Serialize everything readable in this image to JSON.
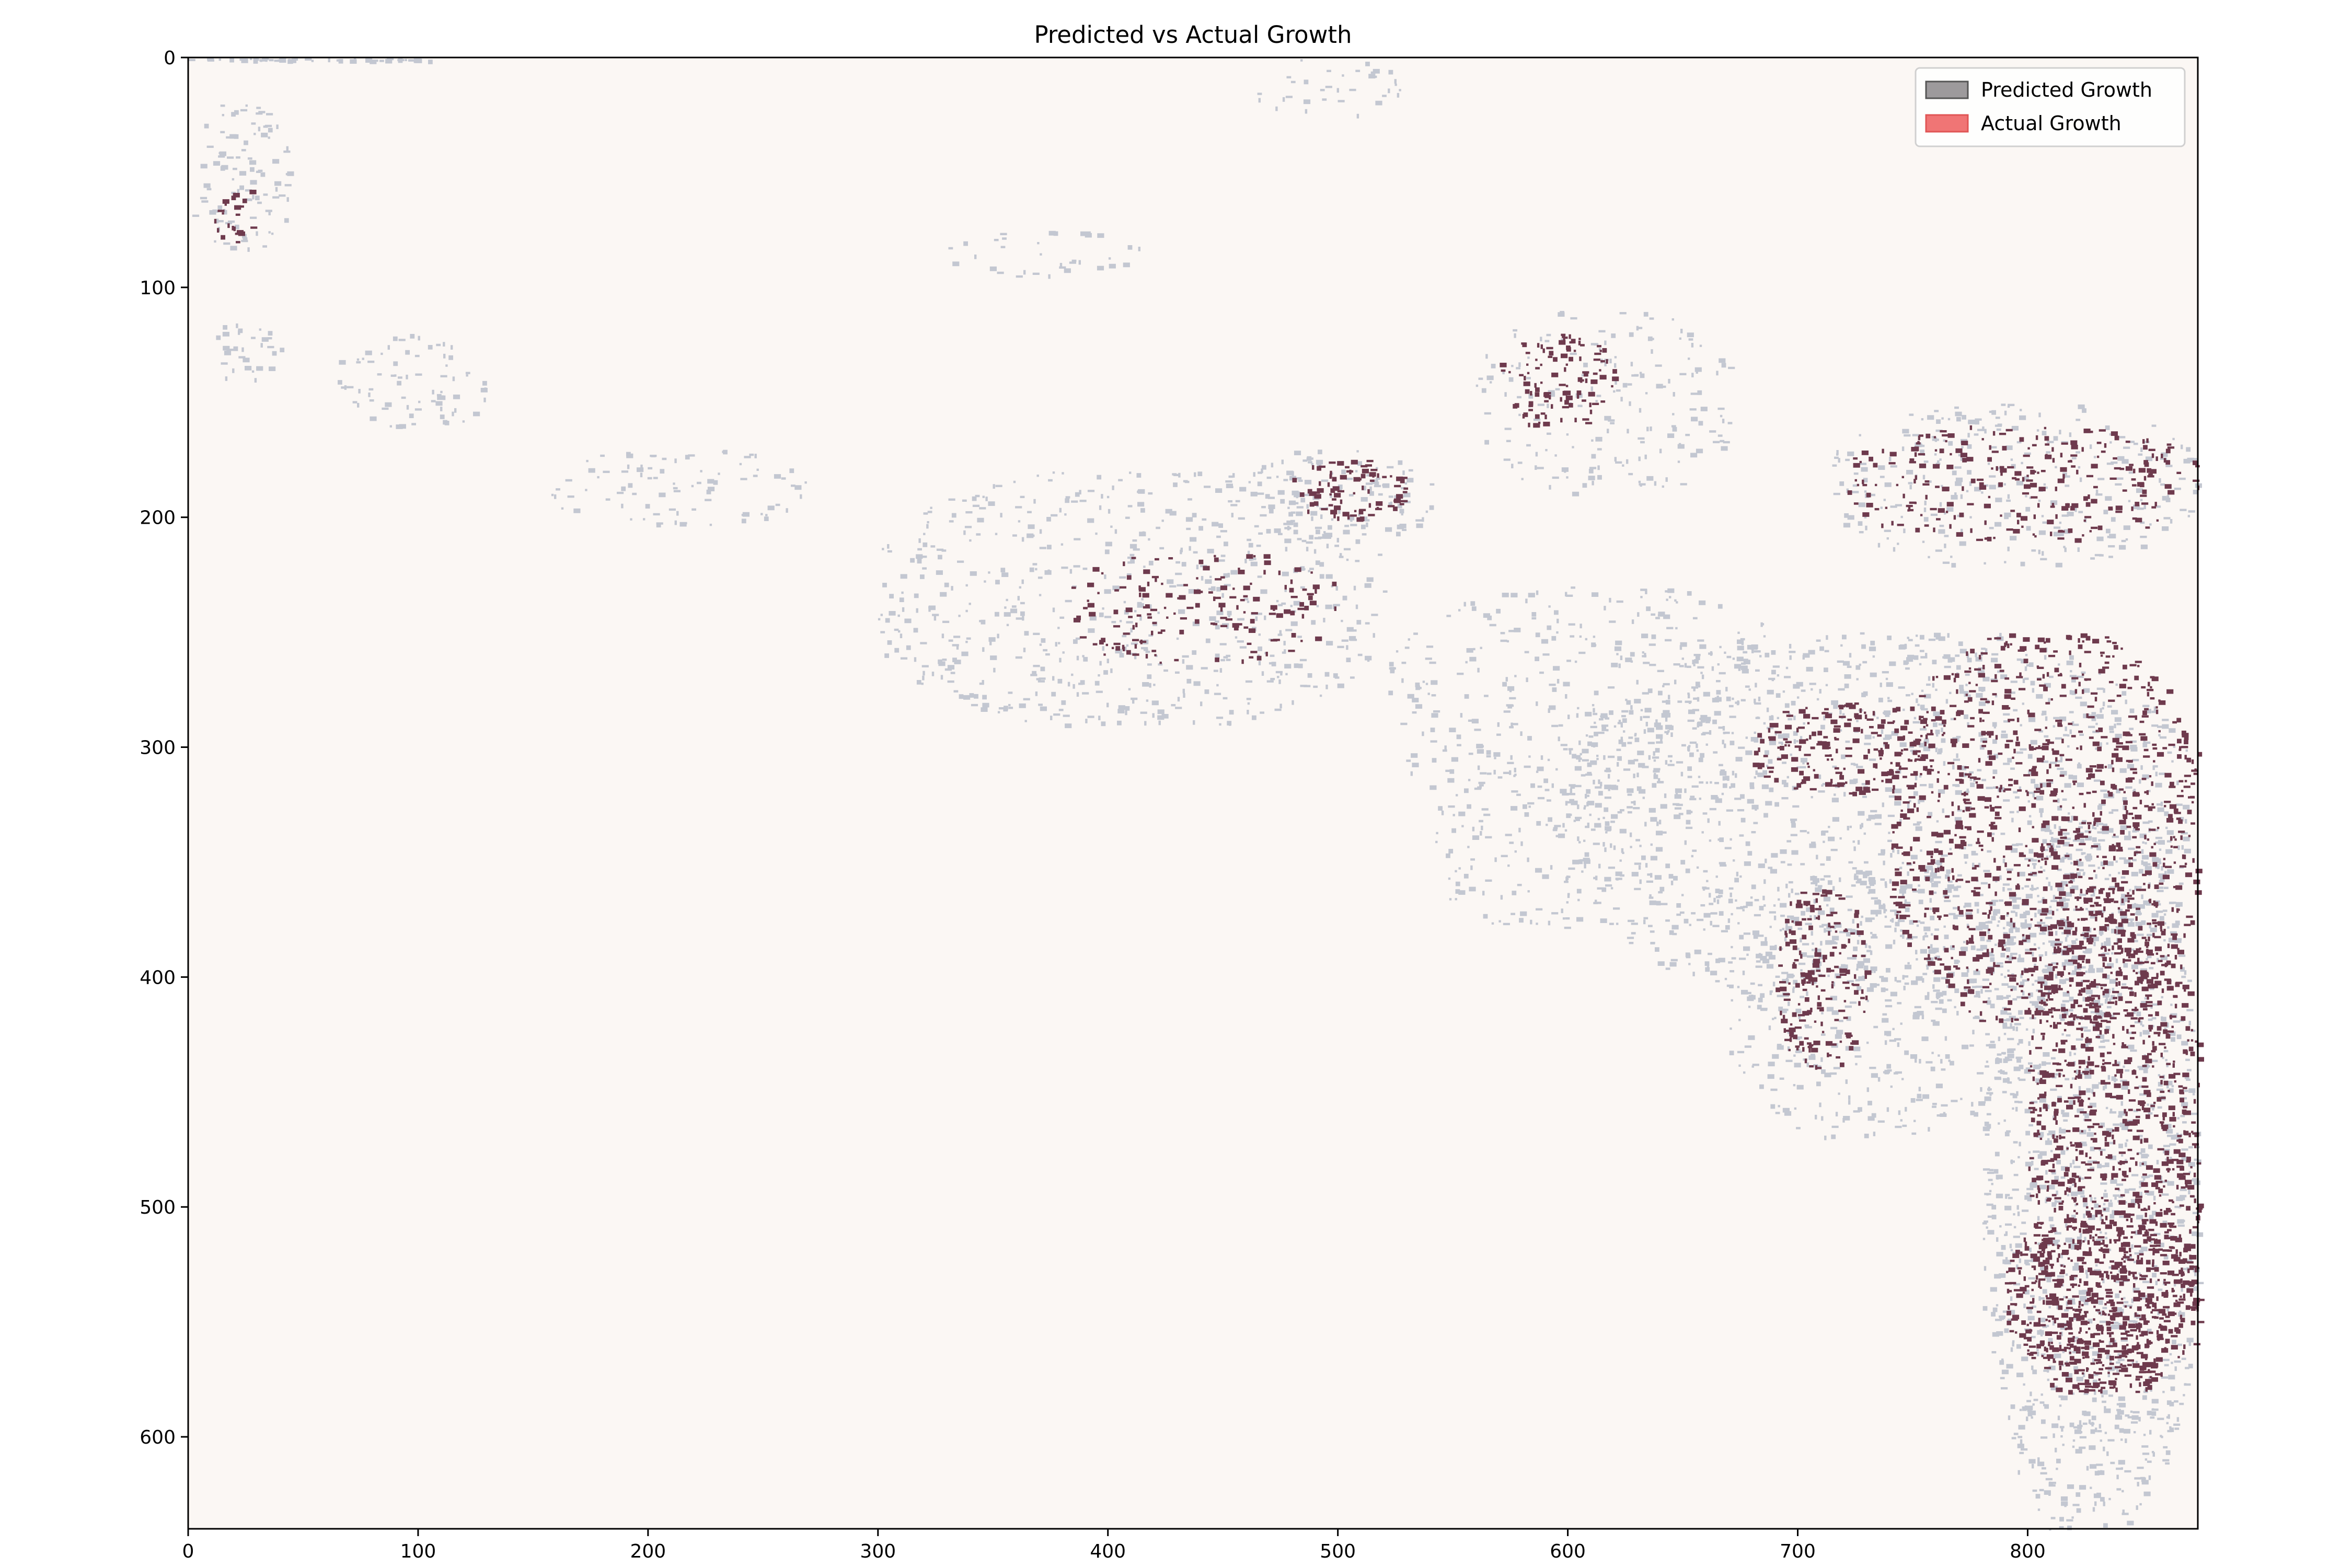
{
  "chart_data": {
    "type": "heatmap",
    "title": "Predicted vs Actual Growth",
    "xlabel": "",
    "ylabel": "",
    "xlim": [
      0,
      874
    ],
    "ylim": [
      640,
      0
    ],
    "x_ticks": [
      0,
      100,
      200,
      300,
      400,
      500,
      600,
      700,
      800
    ],
    "y_ticks": [
      0,
      100,
      200,
      300,
      400,
      500,
      600
    ],
    "grid": false,
    "legend_position": "top-right",
    "background_color": "#fbf7f4",
    "series": [
      {
        "name": "Predicted Growth",
        "color": "#9d9a9c",
        "pixel_color": "#c3c7d1"
      },
      {
        "name": "Actual Growth",
        "color": "#f07575",
        "pixel_color": "#6e3a4d"
      }
    ],
    "regions": [
      {
        "series": "Predicted Growth",
        "x": [
          0,
          45
        ],
        "y": [
          20,
          85
        ],
        "density": 0.15
      },
      {
        "series": "Predicted Growth",
        "x": [
          5,
          40
        ],
        "y": [
          115,
          140
        ],
        "density": 0.15
      },
      {
        "series": "Predicted Growth",
        "x": [
          65,
          135
        ],
        "y": [
          120,
          160
        ],
        "density": 0.12
      },
      {
        "series": "Predicted Growth",
        "x": [
          155,
          270
        ],
        "y": [
          170,
          205
        ],
        "density": 0.1
      },
      {
        "series": "Predicted Growth",
        "x": [
          300,
          520
        ],
        "y": [
          180,
          290
        ],
        "density": 0.12
      },
      {
        "series": "Predicted Growth",
        "x": [
          460,
          540
        ],
        "y": [
          170,
          210
        ],
        "density": 0.18
      },
      {
        "series": "Predicted Growth",
        "x": [
          520,
          700
        ],
        "y": [
          230,
          330
        ],
        "density": 0.1
      },
      {
        "series": "Predicted Growth",
        "x": [
          540,
          620
        ],
        "y": [
          310,
          380
        ],
        "density": 0.1
      },
      {
        "series": "Predicted Growth",
        "x": [
          600,
          870
        ],
        "y": [
          250,
          410
        ],
        "density": 0.15
      },
      {
        "series": "Predicted Growth",
        "x": [
          670,
          800
        ],
        "y": [
          350,
          470
        ],
        "density": 0.12
      },
      {
        "series": "Predicted Growth",
        "x": [
          780,
          874
        ],
        "y": [
          330,
          640
        ],
        "density": 0.2
      },
      {
        "series": "Predicted Growth",
        "x": [
          560,
          670
        ],
        "y": [
          110,
          190
        ],
        "density": 0.1
      },
      {
        "series": "Predicted Growth",
        "x": [
          715,
          874
        ],
        "y": [
          150,
          220
        ],
        "density": 0.12
      },
      {
        "series": "Predicted Growth",
        "x": [
          460,
          530
        ],
        "y": [
          0,
          25
        ],
        "density": 0.08
      },
      {
        "series": "Predicted Growth",
        "x": [
          330,
          420
        ],
        "y": [
          75,
          95
        ],
        "density": 0.08
      },
      {
        "series": "Predicted Growth",
        "x": [
          0,
          106
        ],
        "y": [
          0,
          1
        ],
        "density": 0.9
      },
      {
        "series": "Actual Growth",
        "x": [
          10,
          30
        ],
        "y": [
          55,
          80
        ],
        "density": 0.2
      },
      {
        "series": "Actual Growth",
        "x": [
          480,
          530
        ],
        "y": [
          175,
          200
        ],
        "density": 0.3
      },
      {
        "series": "Actual Growth",
        "x": [
          570,
          620
        ],
        "y": [
          120,
          160
        ],
        "density": 0.25
      },
      {
        "series": "Actual Growth",
        "x": [
          720,
          874
        ],
        "y": [
          160,
          210
        ],
        "density": 0.15
      },
      {
        "series": "Actual Growth",
        "x": [
          680,
          760
        ],
        "y": [
          280,
          320
        ],
        "density": 0.25
      },
      {
        "series": "Actual Growth",
        "x": [
          690,
          730
        ],
        "y": [
          360,
          440
        ],
        "density": 0.25
      },
      {
        "series": "Actual Growth",
        "x": [
          740,
          874
        ],
        "y": [
          250,
          420
        ],
        "density": 0.2
      },
      {
        "series": "Actual Growth",
        "x": [
          800,
          874
        ],
        "y": [
          360,
          580
        ],
        "density": 0.28
      },
      {
        "series": "Actual Growth",
        "x": [
          380,
          500
        ],
        "y": [
          215,
          265
        ],
        "density": 0.12
      },
      {
        "series": "Actual Growth",
        "x": [
          790,
          874
        ],
        "y": [
          500,
          580
        ],
        "density": 0.3
      }
    ]
  }
}
